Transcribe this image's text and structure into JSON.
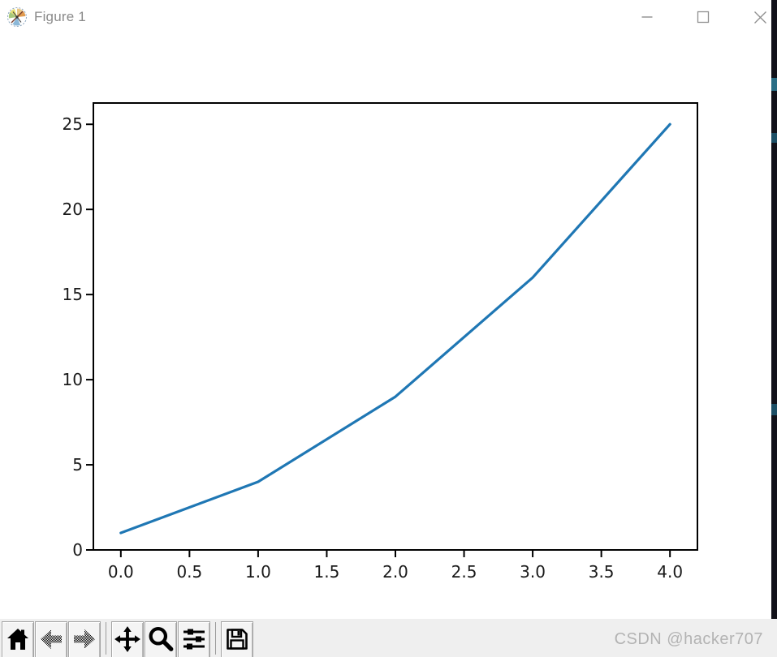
{
  "window": {
    "title": "Figure 1",
    "controls": [
      "minimize-icon",
      "maximize-icon",
      "close-icon"
    ],
    "app_icon": "matplotlib-logo-icon"
  },
  "toolbar": {
    "buttons": [
      {
        "name": "home",
        "icon": "home-icon",
        "disabled": false
      },
      {
        "name": "back",
        "icon": "back-arrow-icon",
        "disabled": true
      },
      {
        "name": "forward",
        "icon": "forward-arrow-icon",
        "disabled": true
      },
      {
        "name": "pan",
        "icon": "pan-arrows-icon",
        "disabled": false
      },
      {
        "name": "zoom-to-rect",
        "icon": "magnifier-icon",
        "disabled": false
      },
      {
        "name": "configure-subplots",
        "icon": "sliders-icon",
        "disabled": false
      },
      {
        "name": "save",
        "icon": "floppy-disk-icon",
        "disabled": false
      }
    ]
  },
  "watermark": "CSDN @hacker707",
  "chart_data": {
    "type": "line",
    "x": [
      0,
      1,
      2,
      3,
      4
    ],
    "series": [
      {
        "name": "",
        "values": [
          1,
          4,
          9,
          16,
          25
        ]
      }
    ],
    "title": "",
    "xlabel": "",
    "ylabel": "",
    "xlim": [
      -0.2,
      4.2
    ],
    "ylim": [
      0,
      26.25
    ],
    "xticks": {
      "values": [
        0,
        0.5,
        1,
        1.5,
        2,
        2.5,
        3,
        3.5,
        4
      ],
      "labels": [
        "0.0",
        "0.5",
        "1.0",
        "1.5",
        "2.0",
        "2.5",
        "3.0",
        "3.5",
        "4.0"
      ]
    },
    "yticks": {
      "values": [
        0,
        5,
        10,
        15,
        20,
        25
      ],
      "labels": [
        "0",
        "5",
        "10",
        "15",
        "20",
        "25"
      ]
    },
    "line_color": "#1f77b4",
    "spine_color": "#000000",
    "grid": false,
    "legend": false
  }
}
